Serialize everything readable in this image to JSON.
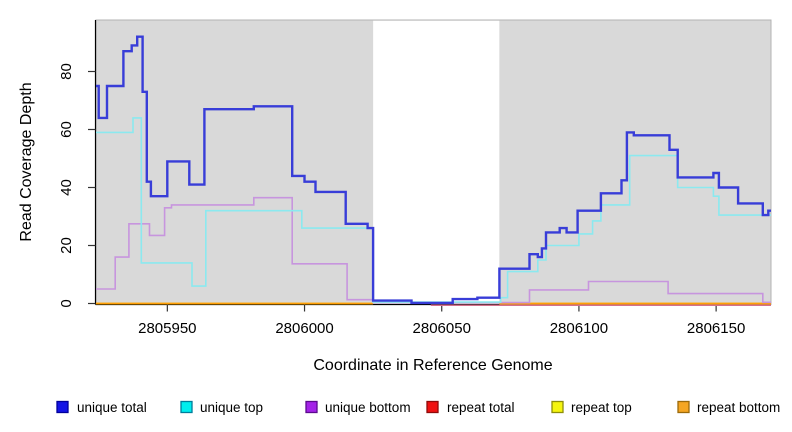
{
  "chart_data": {
    "type": "line",
    "step": true,
    "title": "",
    "xlabel": "Coordinate in Reference Genome",
    "ylabel": "Read Coverage Depth",
    "xlim": [
      2805924,
      2806170
    ],
    "ylim": [
      0,
      97
    ],
    "x_ticks": [
      2805950,
      2806000,
      2806050,
      2806100,
      2806150
    ],
    "y_ticks": [
      0,
      20,
      40,
      60,
      80
    ],
    "grid": false,
    "panel_background": "#d9d9d9",
    "panel_border": "#b3b3b3",
    "masked_region": {
      "from": 2806025,
      "to": 2806071,
      "color": "#ffffff"
    },
    "legend_position": "bottom",
    "series": [
      {
        "name": "unique total",
        "color": "#383dd8",
        "width": 2.4,
        "segments": [
          [
            [
              2805924,
              75
            ],
            [
              2805925,
              64
            ],
            [
              2805928,
              75
            ],
            [
              2805934,
              87
            ],
            [
              2805937,
              89
            ],
            [
              2805939,
              92
            ],
            [
              2805941,
              73
            ],
            [
              2805942.5,
              42
            ],
            [
              2805944,
              37
            ],
            [
              2805950,
              49
            ],
            [
              2805958,
              41
            ],
            [
              2805963.5,
              67
            ],
            [
              2805981.5,
              68
            ],
            [
              2805995.5,
              44
            ],
            [
              2806000,
              42
            ],
            [
              2806004,
              38.5
            ],
            [
              2806015,
              27.5
            ],
            [
              2806023,
              26
            ],
            [
              2806025,
              1
            ],
            [
              2806039,
              0.2
            ],
            [
              2806054,
              1.5
            ],
            [
              2806063,
              2
            ],
            [
              2806071,
              12
            ],
            [
              2806082,
              17
            ],
            [
              2806085,
              16
            ],
            [
              2806086.5,
              19
            ],
            [
              2806088,
              24.5
            ],
            [
              2806093,
              26
            ],
            [
              2806095.5,
              24.5
            ],
            [
              2806099.5,
              32
            ],
            [
              2806108,
              38
            ],
            [
              2806115.5,
              42.5
            ],
            [
              2806117.5,
              59
            ],
            [
              2806120,
              58
            ],
            [
              2806133,
              53
            ],
            [
              2806136,
              43.5
            ],
            [
              2806149,
              45
            ],
            [
              2806151,
              40
            ],
            [
              2806158,
              34.5
            ],
            [
              2806167,
              30.5
            ],
            [
              2806169,
              32
            ],
            [
              2806170,
              32
            ]
          ]
        ]
      },
      {
        "name": "unique top",
        "color": "#8be9ef",
        "width": 1.6,
        "segments": [
          [
            [
              2805924,
              59
            ],
            [
              2805937.5,
              64
            ],
            [
              2805940.5,
              14
            ],
            [
              2805959,
              6
            ],
            [
              2805964,
              32
            ],
            [
              2805999,
              26
            ],
            [
              2806025,
              0.5
            ],
            [
              2806071.5,
              2
            ],
            [
              2806074,
              11
            ],
            [
              2806085,
              15
            ],
            [
              2806088,
              20
            ],
            [
              2806100,
              24
            ],
            [
              2806105,
              28.5
            ],
            [
              2806108,
              34
            ],
            [
              2806118.5,
              51
            ],
            [
              2806136,
              40
            ],
            [
              2806149,
              37
            ],
            [
              2806151,
              30.5
            ],
            [
              2806170,
              30.5
            ]
          ]
        ]
      },
      {
        "name": "unique bottom",
        "color": "#c795de",
        "width": 1.6,
        "segments": [
          [
            [
              2805924,
              5
            ],
            [
              2805931,
              16
            ],
            [
              2805936,
              27.5
            ],
            [
              2805943.5,
              23.5
            ],
            [
              2805949,
              33
            ],
            [
              2805951.5,
              34
            ],
            [
              2805981.5,
              36.5
            ],
            [
              2805995.5,
              13.7
            ],
            [
              2806015.5,
              1.3
            ],
            [
              2806025,
              0.3
            ],
            [
              2806082,
              4.7
            ],
            [
              2806103.5,
              7.6
            ],
            [
              2806132.5,
              3.4
            ],
            [
              2806167,
              0.4
            ],
            [
              2806170,
              0.4
            ]
          ]
        ]
      },
      {
        "name": "repeat total",
        "color": "#d4708c",
        "width": 1.5,
        "segments": [
          [
            [
              2806046,
              0
            ],
            [
              2806170,
              0
            ]
          ]
        ]
      },
      {
        "name": "repeat top",
        "color": "#f5f50f",
        "width": 1.5,
        "segments": [
          [
            [
              2805924,
              0
            ],
            [
              2806025,
              0
            ]
          ],
          [
            [
              2806071,
              0
            ],
            [
              2806170,
              0
            ]
          ]
        ]
      },
      {
        "name": "repeat bottom",
        "color": "#ff9e05",
        "width": 1.8,
        "segments": [
          [
            [
              2805924,
              0
            ],
            [
              2806025,
              0
            ]
          ],
          [
            [
              2806071,
              0
            ],
            [
              2806170,
              0
            ]
          ]
        ]
      }
    ]
  },
  "legend": {
    "items": [
      {
        "label": "unique total",
        "fill": "#1414e6",
        "border": "#00009b"
      },
      {
        "label": "unique top",
        "fill": "#00eeee",
        "border": "#007d9b"
      },
      {
        "label": "unique bottom",
        "fill": "#a423e8",
        "border": "#5c0a8e"
      },
      {
        "label": "repeat total",
        "fill": "#f01111",
        "border": "#8e0a0a"
      },
      {
        "label": "repeat top",
        "fill": "#f5f50f",
        "border": "#8e8e0a"
      },
      {
        "label": "repeat bottom",
        "fill": "#f5a623",
        "border": "#9b6a0a"
      }
    ]
  }
}
